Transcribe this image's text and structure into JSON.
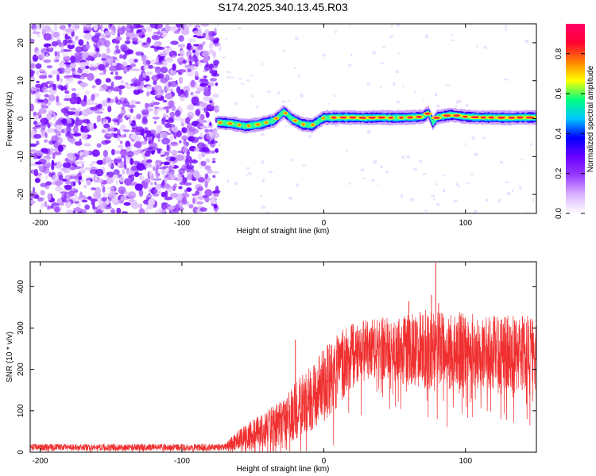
{
  "title": "S174.2025.340.13.45.R03",
  "chart_data": [
    {
      "type": "heatmap",
      "xlabel": "Height of straight line (km)",
      "ylabel": "Frequency (Hz)",
      "xlim": [
        -207,
        150
      ],
      "ylim": [
        -25,
        25
      ],
      "xticks": [
        -200,
        -100,
        0,
        100
      ],
      "yticks": [
        -20,
        -10,
        0,
        10,
        20
      ],
      "colorbar": {
        "label": "Normalized spectral amplitude",
        "lim": [
          0,
          0.95
        ],
        "ticks": [
          "0.0",
          "0.2",
          "0.4",
          "0.6",
          "0.8"
        ],
        "tick_values": [
          0,
          0.2,
          0.4,
          0.6,
          0.8
        ],
        "colors": [
          "#ffffff",
          "#d9b3ff",
          "#9a3cff",
          "#6a00ff",
          "#0000ff",
          "#00c8ff",
          "#00ff80",
          "#ffff00",
          "#ff8000",
          "#ff0033",
          "#ff0066"
        ]
      },
      "signal_track": {
        "x": [
          -75,
          -65,
          -55,
          -45,
          -35,
          -28,
          -22,
          -15,
          -8,
          0,
          10,
          20,
          30,
          40,
          50,
          60,
          70,
          74,
          77,
          80,
          90,
          100,
          110,
          120,
          130,
          140,
          150
        ],
        "y": [
          -1,
          -1.3,
          -2,
          -1.5,
          -0.5,
          1.8,
          -0.2,
          -1.5,
          -1.8,
          0.2,
          0.3,
          0.3,
          0.2,
          0.3,
          0.2,
          0.3,
          0.5,
          1.5,
          -1.2,
          0.4,
          1,
          0.5,
          0.3,
          0.3,
          0.2,
          0.3,
          0.3
        ]
      },
      "noise_region_x": [
        -207,
        -75
      ]
    },
    {
      "type": "line",
      "xlabel": "Height of straight line (km)",
      "ylabel": "SNR (10 * v/v)",
      "xlim": [
        -207,
        150
      ],
      "ylim": [
        0,
        460
      ],
      "xticks": [
        -200,
        -100,
        0,
        100
      ],
      "yticks": [
        0,
        100,
        200,
        300,
        400
      ],
      "color": "#f03030",
      "envelope": {
        "x": [
          -207,
          -150,
          -100,
          -70,
          -60,
          -45,
          -30,
          -20,
          -10,
          0,
          10,
          20,
          30,
          40,
          50,
          60,
          70,
          80,
          90,
          100,
          110,
          120,
          130,
          140,
          150
        ],
        "mean": [
          12,
          12,
          12,
          12,
          30,
          50,
          70,
          100,
          130,
          160,
          200,
          230,
          245,
          250,
          250,
          250,
          250,
          245,
          245,
          245,
          240,
          240,
          240,
          240,
          240
        ],
        "spread": [
          8,
          8,
          8,
          8,
          25,
          40,
          55,
          70,
          80,
          90,
          90,
          80,
          75,
          75,
          80,
          90,
          95,
          100,
          95,
          95,
          90,
          90,
          90,
          90,
          90
        ]
      },
      "spikes": [
        {
          "x": -20,
          "y": 272
        },
        {
          "x": 79,
          "y": 458
        },
        {
          "x": 76,
          "y": 380
        },
        {
          "x": 60,
          "y": 365
        },
        {
          "x": 81,
          "y": 360
        }
      ]
    }
  ]
}
